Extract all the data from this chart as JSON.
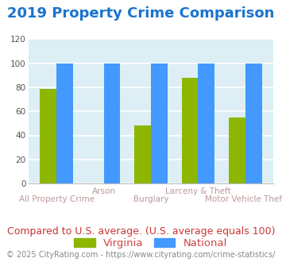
{
  "title": "2019 Property Crime Comparison",
  "title_color": "#1874cd",
  "title_fontsize": 13.0,
  "categories": [
    "All Property Crime",
    "Arson",
    "Burglary",
    "Larceny & Theft",
    "Motor Vehicle Theft"
  ],
  "virginia_values": [
    79,
    0,
    48,
    88,
    55
  ],
  "national_values": [
    100,
    100,
    100,
    100,
    100
  ],
  "virginia_color": "#8db600",
  "national_color": "#4499ff",
  "ylim": [
    0,
    120
  ],
  "yticks": [
    0,
    20,
    40,
    60,
    80,
    100,
    120
  ],
  "plot_bg_color": "#ddeef5",
  "fig_bg_color": "#ffffff",
  "grid_color": "#ffffff",
  "xlabel_color": "#bb9999",
  "legend_virginia": "Virginia",
  "legend_national": "National",
  "legend_text_color": "#cc4444",
  "note_text": "Compared to U.S. average. (U.S. average equals 100)",
  "note_color": "#cc3333",
  "note_fontsize": 9.0,
  "footer_text": "© 2025 CityRating.com - https://www.cityrating.com/crime-statistics/",
  "footer_color": "#888888",
  "footer_fontsize": 7.0,
  "bar_width": 0.35,
  "top_labels": {
    "1": "Arson",
    "3": "Larceny & Theft"
  },
  "bottom_labels": {
    "0": "All Property Crime",
    "2": "Burglary",
    "4": "Motor Vehicle Theft"
  }
}
